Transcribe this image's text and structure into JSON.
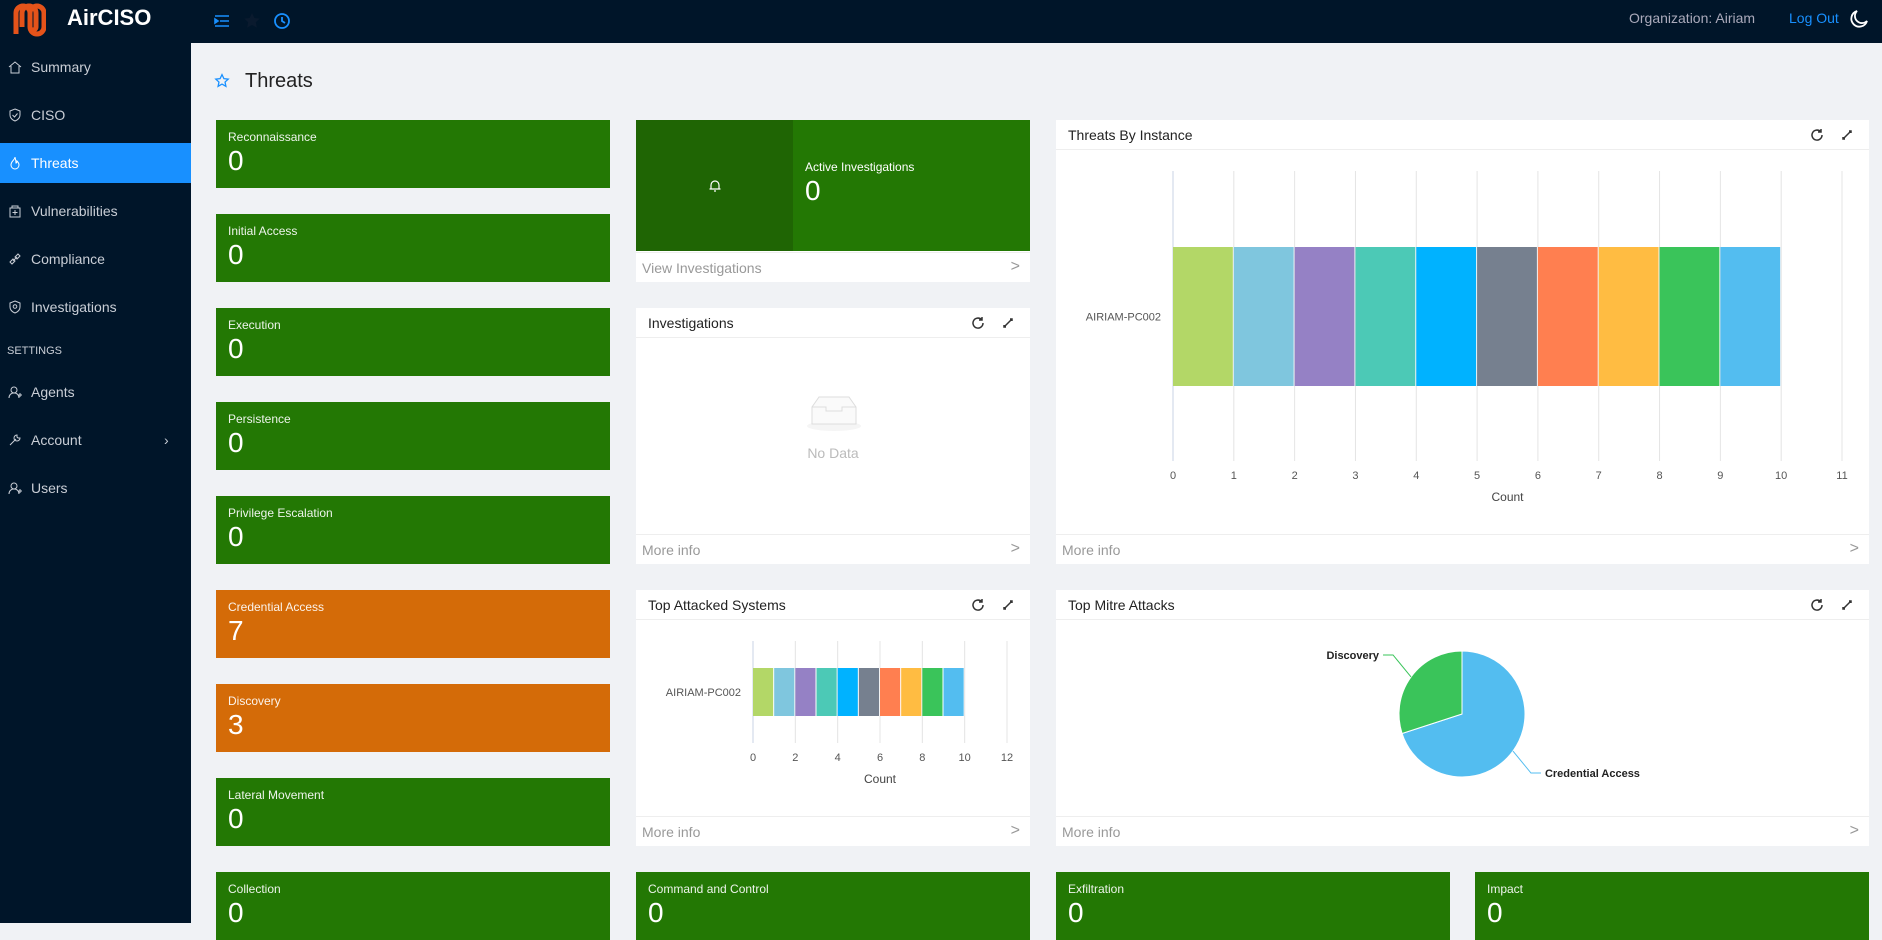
{
  "header": {
    "brand": "AirCISO",
    "organization": "Organization: Airiam",
    "logout": "Log Out"
  },
  "sidebar": {
    "items": [
      {
        "label": "Summary",
        "icon": "home-icon"
      },
      {
        "label": "CISO",
        "icon": "shield-check-icon"
      },
      {
        "label": "Threats",
        "icon": "fire-icon",
        "active": true
      },
      {
        "label": "Vulnerabilities",
        "icon": "medicine-box-icon"
      },
      {
        "label": "Compliance",
        "icon": "link-icon"
      },
      {
        "label": "Investigations",
        "icon": "shield-search-icon"
      }
    ],
    "section": "SETTINGS",
    "settings": [
      {
        "label": "Agents",
        "icon": "users-icon"
      },
      {
        "label": "Account",
        "icon": "wrench-icon"
      },
      {
        "label": "Users",
        "icon": "users-icon"
      }
    ]
  },
  "page": {
    "title": "Threats"
  },
  "tactics": [
    {
      "label": "Reconnaissance",
      "value": "0"
    },
    {
      "label": "Initial Access",
      "value": "0"
    },
    {
      "label": "Execution",
      "value": "0"
    },
    {
      "label": "Persistence",
      "value": "0"
    },
    {
      "label": "Privilege Escalation",
      "value": "0"
    },
    {
      "label": "Credential Access",
      "value": "7"
    },
    {
      "label": "Discovery",
      "value": "3"
    },
    {
      "label": "Lateral Movement",
      "value": "0"
    },
    {
      "label": "Collection",
      "value": "0"
    },
    {
      "label": "Command and Control",
      "value": "0"
    },
    {
      "label": "Exfiltration",
      "value": "0"
    },
    {
      "label": "Impact",
      "value": "0"
    }
  ],
  "active_investigations": {
    "label": "Active Investigations",
    "value": "0",
    "link": "View Investigations"
  },
  "investigations": {
    "title": "Investigations",
    "empty": "No Data",
    "more": "More info"
  },
  "panels": {
    "threats_by_instance": "Threats By Instance",
    "top_attacked": "Top Attacked Systems",
    "top_mitre": "Top Mitre Attacks",
    "more": "More info"
  },
  "colors": {
    "green": "#237804",
    "orange": "#d46b08",
    "accent": "#1890ff",
    "segments": [
      "#b3d767",
      "#7fc6de",
      "#9581c5",
      "#4cc9b6",
      "#00b2ff",
      "#76808f",
      "#ff7f50",
      "#ffbc42",
      "#3ac45a",
      "#53bdf0"
    ]
  },
  "chart_data": [
    {
      "type": "bar",
      "title": "Threats By Instance",
      "orientation": "horizontal",
      "stacked": true,
      "categories": [
        "AIRIAM-PC002"
      ],
      "series_values": [
        1,
        1,
        1,
        1,
        1,
        1,
        1,
        1,
        1,
        1
      ],
      "xlabel": "Count",
      "xlim": [
        0,
        11
      ],
      "xticks": [
        "0",
        "1",
        "2",
        "3",
        "4",
        "5",
        "6",
        "7",
        "8",
        "9",
        "10",
        "11"
      ]
    },
    {
      "type": "bar",
      "title": "Top Attacked Systems",
      "orientation": "horizontal",
      "stacked": true,
      "categories": [
        "AIRIAM-PC002"
      ],
      "series_values": [
        1,
        1,
        1,
        1,
        1,
        1,
        1,
        1,
        1,
        1
      ],
      "xlabel": "Count",
      "xlim": [
        0,
        12
      ],
      "xticks": [
        "0",
        "2",
        "4",
        "6",
        "8",
        "10",
        "12"
      ]
    },
    {
      "type": "pie",
      "title": "Top Mitre Attacks",
      "slices": [
        {
          "label": "Credential Access",
          "value": 7,
          "color": "#53bdf0"
        },
        {
          "label": "Discovery",
          "value": 3,
          "color": "#3ac45a"
        }
      ]
    }
  ]
}
